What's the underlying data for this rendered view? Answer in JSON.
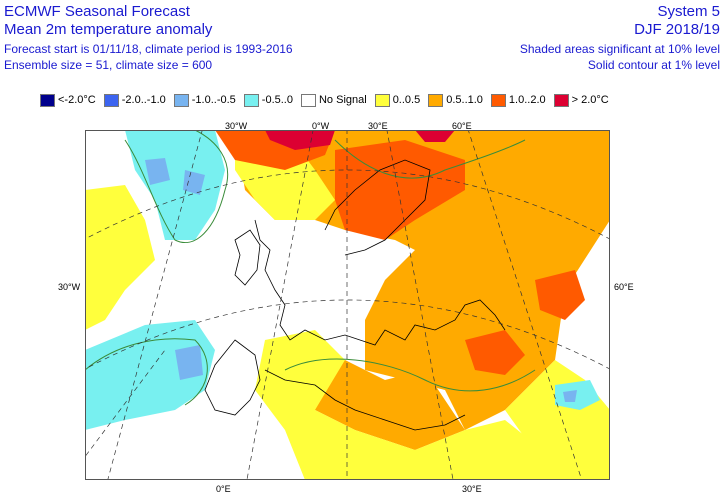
{
  "header": {
    "title": "ECMWF Seasonal Forecast",
    "subtitle": "Mean 2m temperature anomaly",
    "forecast_info": "Forecast start is 01/11/18, climate period is 1993-2016",
    "ensemble_info": "Ensemble size = 51, climate size = 600",
    "system": "System 5",
    "season": "DJF 2018/19",
    "sig_note": "Shaded areas significant at 10% level",
    "contour_note": "Solid contour at 1% level"
  },
  "legend": [
    {
      "label": "<-2.0°C",
      "color": "#00008c"
    },
    {
      "label": "-2.0..-1.0",
      "color": "#3c64f0"
    },
    {
      "label": "-1.0..-0.5",
      "color": "#78b4f0"
    },
    {
      "label": "-0.5..0",
      "color": "#78f0f0"
    },
    {
      "label": "No Signal",
      "color": "#ffffff"
    },
    {
      "label": "0..0.5",
      "color": "#ffff3c"
    },
    {
      "label": "0.5..1.0",
      "color": "#ffaa00"
    },
    {
      "label": "1.0..2.0",
      "color": "#ff5a00"
    },
    {
      "label": "> 2.0°C",
      "color": "#dc0032"
    }
  ],
  "map": {
    "top_labels": [
      "30°W",
      "0°W",
      "30°E",
      "60°E"
    ],
    "bottom_labels": [
      "0°E",
      "30°E"
    ],
    "left_label": "30°W",
    "right_label": "60°E"
  }
}
